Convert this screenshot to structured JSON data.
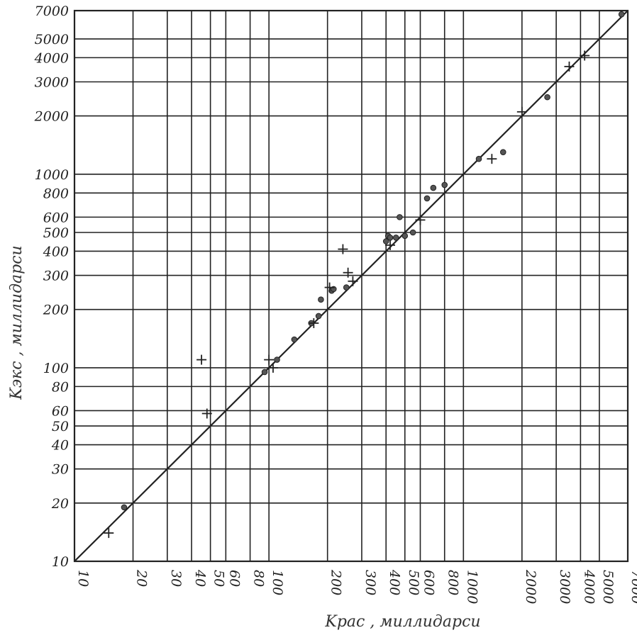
{
  "chart_data": {
    "type": "scatter",
    "scale": "log-log",
    "xlabel": "Kрас , миллидарси",
    "ylabel": "Kэкс ,  миллидарси",
    "xlim": [
      10,
      7000
    ],
    "ylim": [
      10,
      7000
    ],
    "grid": true,
    "x_ticks": [
      10,
      20,
      30,
      40,
      50,
      60,
      80,
      100,
      200,
      300,
      400,
      500,
      600,
      800,
      1000,
      2000,
      3000,
      4000,
      5000,
      7000
    ],
    "x_tick_labels": [
      "10",
      "20",
      "30",
      "40",
      "50",
      "60",
      "80",
      "100",
      "200",
      "300",
      "400",
      "500",
      "600",
      "800",
      "1000",
      "2000",
      "3000",
      "4000",
      "5000",
      "7000"
    ],
    "y_ticks": [
      10,
      20,
      30,
      40,
      50,
      60,
      80,
      100,
      200,
      300,
      400,
      500,
      600,
      800,
      1000,
      2000,
      3000,
      4000,
      5000,
      7000
    ],
    "y_tick_labels": [
      "10",
      "20",
      "30",
      "40",
      "50",
      "60",
      "80",
      "100",
      "200",
      "300",
      "400",
      "500",
      "600",
      "800",
      "1000",
      "2000",
      "3000",
      "4000",
      "5000",
      "7000"
    ],
    "reference_line": [
      [
        10,
        10
      ],
      [
        7000,
        7000
      ]
    ],
    "series": [
      {
        "marker": "circle",
        "points": [
          [
            18,
            19
          ],
          [
            95,
            95
          ],
          [
            110,
            110
          ],
          [
            135,
            140
          ],
          [
            165,
            170
          ],
          [
            180,
            185
          ],
          [
            185,
            225
          ],
          [
            210,
            250
          ],
          [
            215,
            255
          ],
          [
            250,
            260
          ],
          [
            400,
            450
          ],
          [
            410,
            480
          ],
          [
            420,
            470
          ],
          [
            450,
            470
          ],
          [
            470,
            600
          ],
          [
            500,
            480
          ],
          [
            550,
            500
          ],
          [
            650,
            750
          ],
          [
            700,
            850
          ],
          [
            800,
            880
          ],
          [
            1200,
            1200
          ],
          [
            1600,
            1300
          ],
          [
            2700,
            2500
          ],
          [
            6500,
            6700
          ]
        ]
      },
      {
        "marker": "cross",
        "points": [
          [
            15,
            14
          ],
          [
            45,
            110
          ],
          [
            48,
            58
          ],
          [
            100,
            110
          ],
          [
            105,
            100
          ],
          [
            170,
            170
          ],
          [
            205,
            260
          ],
          [
            240,
            410
          ],
          [
            255,
            310
          ],
          [
            270,
            280
          ],
          [
            420,
            430
          ],
          [
            600,
            580
          ],
          [
            1400,
            1200
          ],
          [
            2000,
            2100
          ],
          [
            3500,
            3600
          ],
          [
            4200,
            4100
          ]
        ]
      }
    ]
  }
}
